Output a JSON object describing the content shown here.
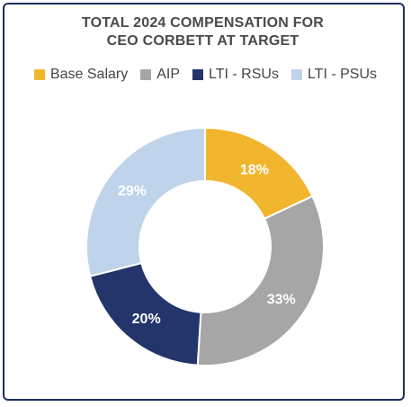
{
  "chart_data": {
    "type": "pie",
    "title": "TOTAL 2024 COMPENSATION FOR CEO CORBETT AT TARGET",
    "title_lines": [
      "TOTAL 2024 COMPENSATION FOR",
      "CEO CORBETT AT TARGET"
    ],
    "categories": [
      "Base Salary",
      "AIP",
      "LTI - RSUs",
      "LTI - PSUs"
    ],
    "values": [
      18,
      33,
      20,
      29
    ],
    "data_labels": [
      "18%",
      "33%",
      "20%",
      "29%"
    ],
    "colors": [
      "#f2b52e",
      "#a6a6a6",
      "#23356b",
      "#bfd3ea"
    ],
    "legend_position": "top",
    "donut": true
  }
}
